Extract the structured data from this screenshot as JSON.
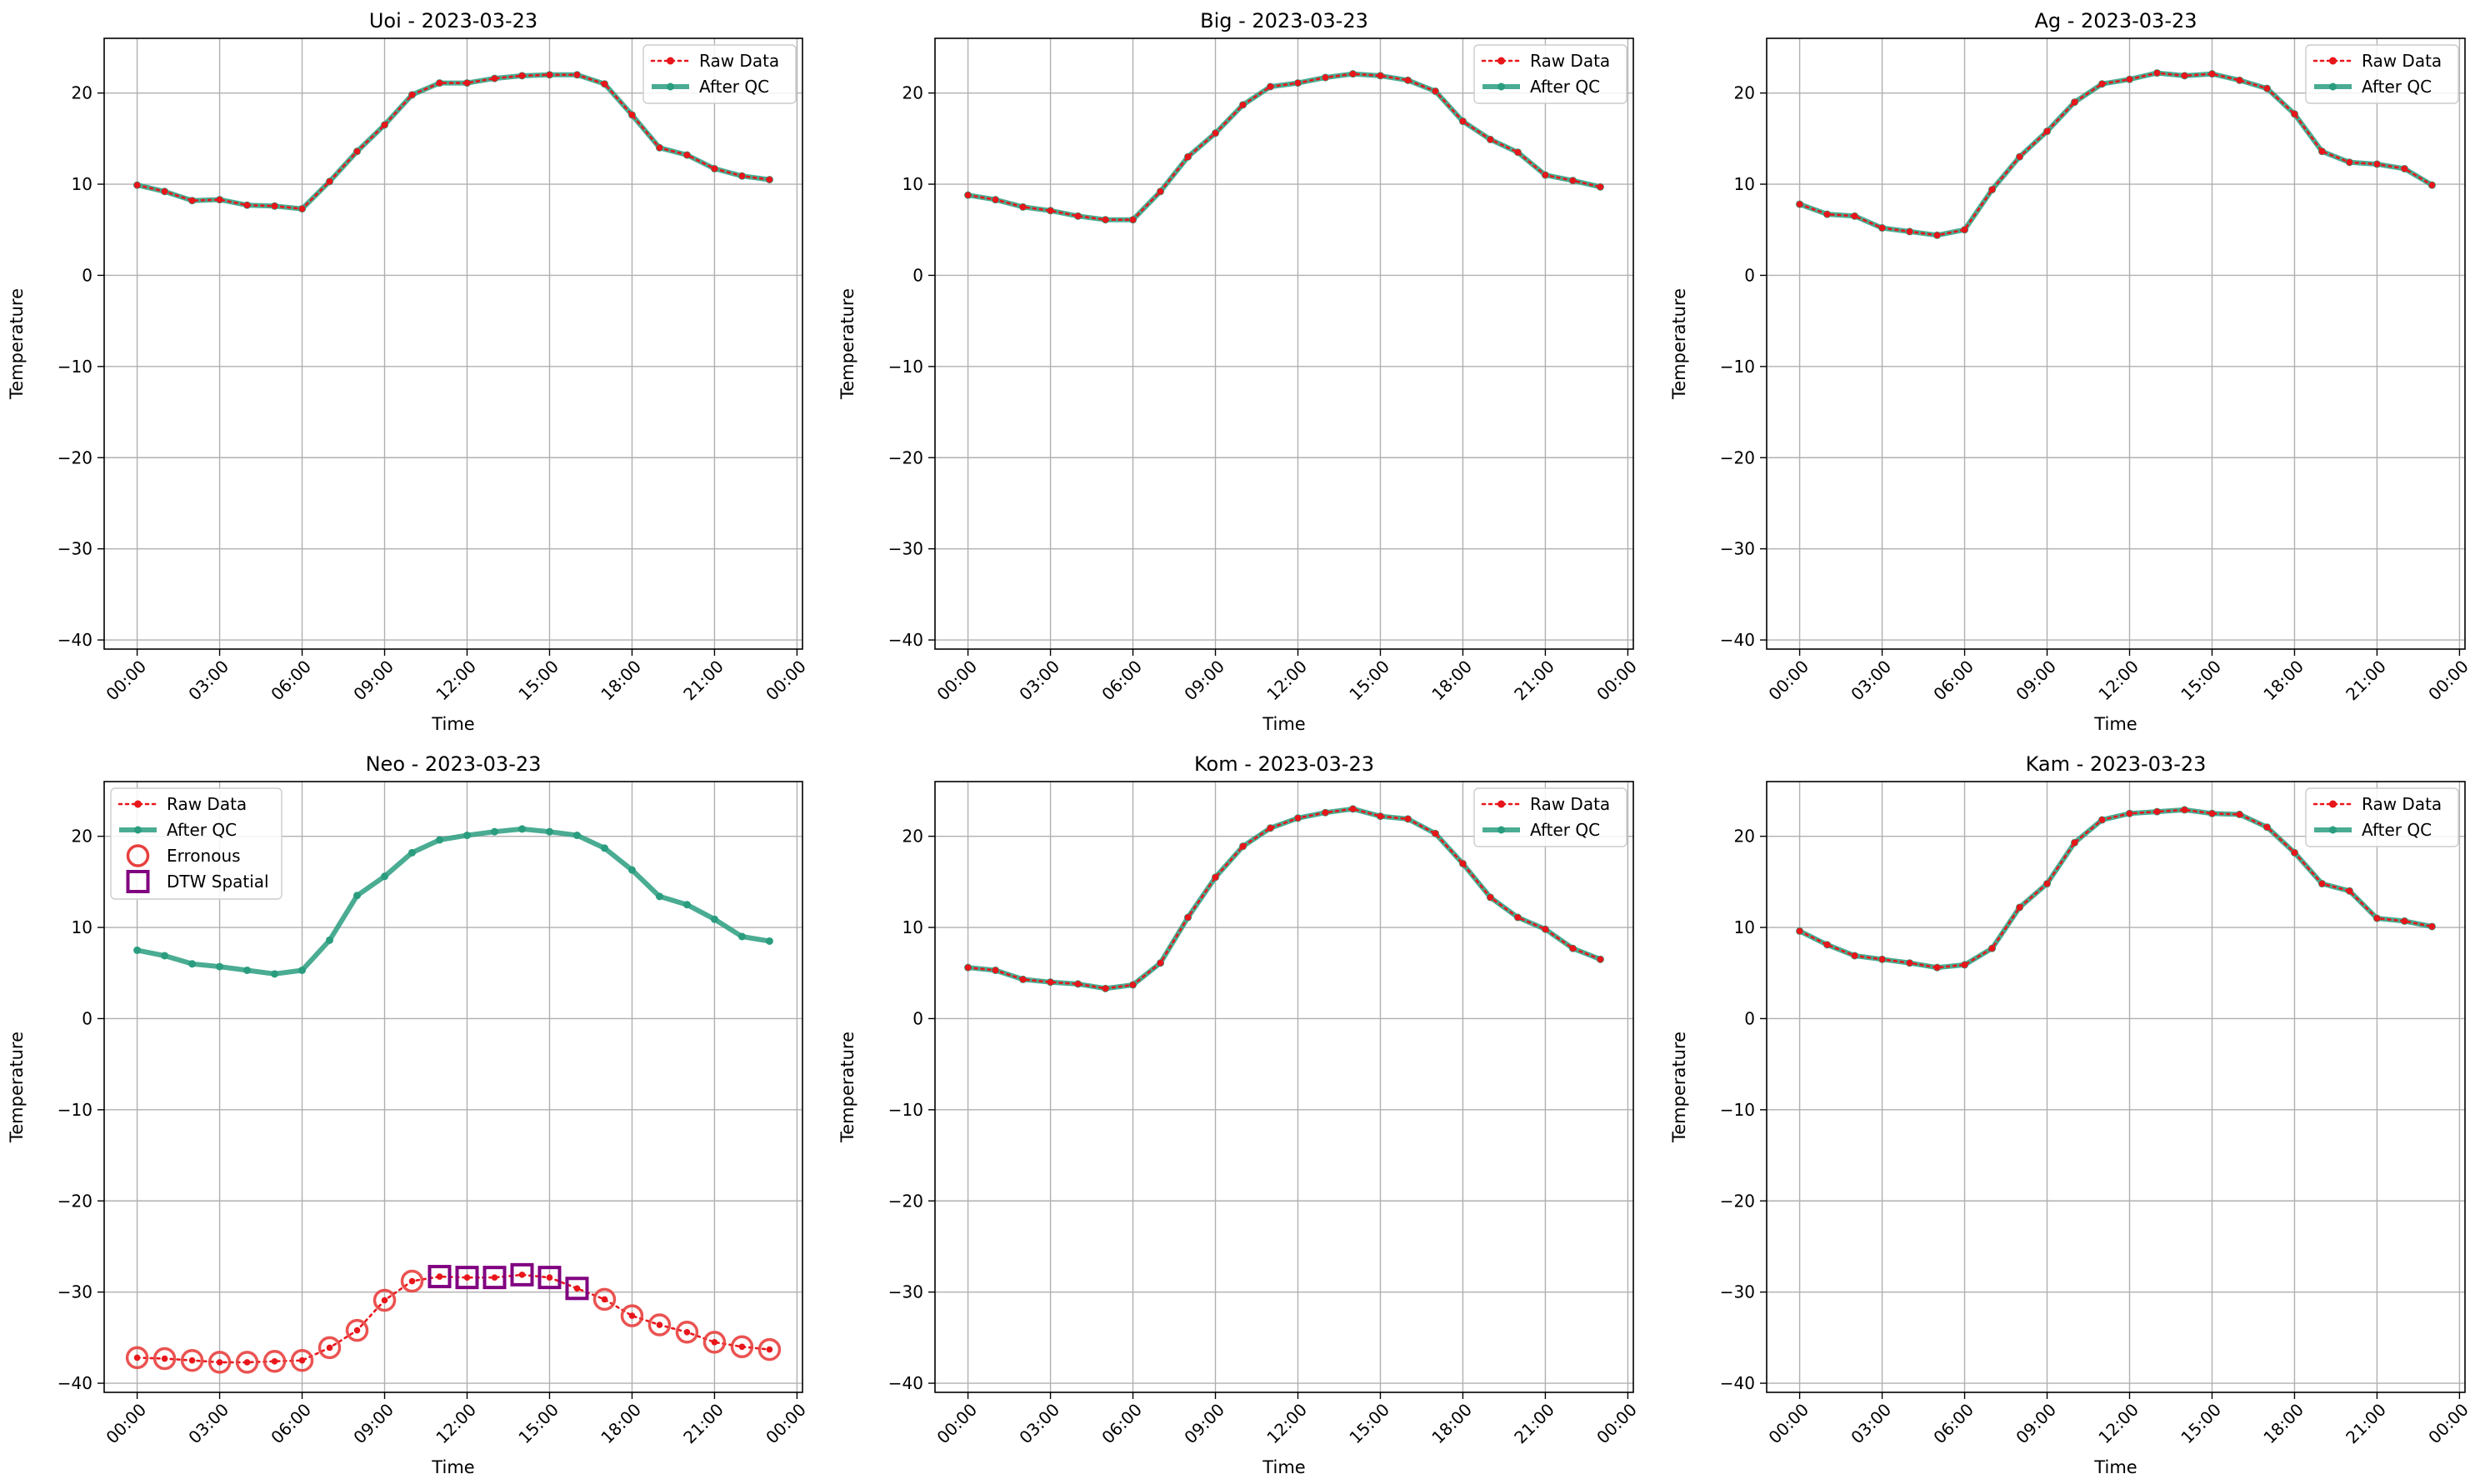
{
  "colors": {
    "raw": "#e8161b",
    "qc": "#2a9d7f",
    "erroneous": "#e8403e",
    "dtw": "#800080",
    "grid": "#b0b0b0"
  },
  "chart_data": [
    {
      "type": "line",
      "title": "Uoi - 2023-03-23",
      "xlabel": "Time",
      "ylabel": "Temperature",
      "ylim": [
        -41,
        26
      ],
      "xlim_hours": [
        -1.2,
        24.2
      ],
      "y_ticks": [
        "20",
        "10",
        "0",
        "−10",
        "−20",
        "−30",
        "−40"
      ],
      "x_ticks": [
        "00:00",
        "03:00",
        "06:00",
        "09:00",
        "12:00",
        "15:00",
        "18:00",
        "21:00",
        "00:00"
      ],
      "grid": true,
      "legend_position": "top-right",
      "legend": [
        "Raw Data",
        "After QC"
      ],
      "x": [
        "00:00",
        "01:00",
        "02:00",
        "03:00",
        "04:00",
        "05:00",
        "06:00",
        "07:00",
        "08:00",
        "09:00",
        "10:00",
        "11:00",
        "12:00",
        "13:00",
        "14:00",
        "15:00",
        "16:00",
        "17:00",
        "18:00",
        "19:00",
        "20:00",
        "21:00",
        "22:00",
        "23:00"
      ],
      "series": [
        {
          "name": "Raw Data",
          "values": [
            9.9,
            9.2,
            8.2,
            8.3,
            7.7,
            7.6,
            7.3,
            10.3,
            13.6,
            16.5,
            19.8,
            21.1,
            21.1,
            21.6,
            21.9,
            22.0,
            22.0,
            21.0,
            17.6,
            14.0,
            13.2,
            11.7,
            10.9,
            10.5
          ]
        },
        {
          "name": "After QC",
          "values": [
            9.9,
            9.2,
            8.2,
            8.3,
            7.7,
            7.6,
            7.3,
            10.3,
            13.6,
            16.5,
            19.8,
            21.1,
            21.1,
            21.6,
            21.9,
            22.0,
            22.0,
            21.0,
            17.6,
            14.0,
            13.2,
            11.7,
            10.9,
            10.5
          ]
        }
      ]
    },
    {
      "type": "line",
      "title": "Big - 2023-03-23",
      "xlabel": "Time",
      "ylabel": "Temperature",
      "ylim": [
        -41,
        26
      ],
      "xlim_hours": [
        -1.2,
        24.2
      ],
      "y_ticks": [
        "20",
        "10",
        "0",
        "−10",
        "−20",
        "−30",
        "−40"
      ],
      "x_ticks": [
        "00:00",
        "03:00",
        "06:00",
        "09:00",
        "12:00",
        "15:00",
        "18:00",
        "21:00",
        "00:00"
      ],
      "grid": true,
      "legend_position": "top-right",
      "legend": [
        "Raw Data",
        "After QC"
      ],
      "x": [
        "00:00",
        "01:00",
        "02:00",
        "03:00",
        "04:00",
        "05:00",
        "06:00",
        "07:00",
        "08:00",
        "09:00",
        "10:00",
        "11:00",
        "12:00",
        "13:00",
        "14:00",
        "15:00",
        "16:00",
        "17:00",
        "18:00",
        "19:00",
        "20:00",
        "21:00",
        "22:00",
        "23:00"
      ],
      "series": [
        {
          "name": "Raw Data",
          "values": [
            8.8,
            8.3,
            7.5,
            7.1,
            6.5,
            6.1,
            6.1,
            9.2,
            13.0,
            15.6,
            18.7,
            20.7,
            21.1,
            21.7,
            22.1,
            21.9,
            21.4,
            20.2,
            16.9,
            14.9,
            13.5,
            11.0,
            10.4,
            9.7
          ]
        },
        {
          "name": "After QC",
          "values": [
            8.8,
            8.3,
            7.5,
            7.1,
            6.5,
            6.1,
            6.1,
            9.2,
            13.0,
            15.6,
            18.7,
            20.7,
            21.1,
            21.7,
            22.1,
            21.9,
            21.4,
            20.2,
            16.9,
            14.9,
            13.5,
            11.0,
            10.4,
            9.7
          ]
        }
      ]
    },
    {
      "type": "line",
      "title": "Ag - 2023-03-23",
      "xlabel": "Time",
      "ylabel": "Temperature",
      "ylim": [
        -41,
        26
      ],
      "xlim_hours": [
        -1.2,
        24.2
      ],
      "y_ticks": [
        "20",
        "10",
        "0",
        "−10",
        "−20",
        "−30",
        "−40"
      ],
      "x_ticks": [
        "00:00",
        "03:00",
        "06:00",
        "09:00",
        "12:00",
        "15:00",
        "18:00",
        "21:00",
        "00:00"
      ],
      "grid": true,
      "legend_position": "top-right",
      "legend": [
        "Raw Data",
        "After QC"
      ],
      "x": [
        "00:00",
        "01:00",
        "02:00",
        "03:00",
        "04:00",
        "05:00",
        "06:00",
        "07:00",
        "08:00",
        "09:00",
        "10:00",
        "11:00",
        "12:00",
        "13:00",
        "14:00",
        "15:00",
        "16:00",
        "17:00",
        "18:00",
        "19:00",
        "20:00",
        "21:00",
        "22:00",
        "23:00"
      ],
      "series": [
        {
          "name": "Raw Data",
          "values": [
            7.8,
            6.7,
            6.5,
            5.2,
            4.8,
            4.4,
            5.0,
            9.4,
            13.0,
            15.8,
            19.0,
            21.0,
            21.5,
            22.2,
            21.9,
            22.1,
            21.4,
            20.5,
            17.7,
            13.6,
            12.4,
            12.2,
            11.7,
            9.9
          ]
        },
        {
          "name": "After QC",
          "values": [
            7.8,
            6.7,
            6.5,
            5.2,
            4.8,
            4.4,
            5.0,
            9.4,
            13.0,
            15.8,
            19.0,
            21.0,
            21.5,
            22.2,
            21.9,
            22.1,
            21.4,
            20.5,
            17.7,
            13.6,
            12.4,
            12.2,
            11.7,
            9.9
          ]
        }
      ]
    },
    {
      "type": "line",
      "title": "Neo - 2023-03-23",
      "xlabel": "Time",
      "ylabel": "Temperature",
      "ylim": [
        -41,
        26
      ],
      "xlim_hours": [
        -1.2,
        24.2
      ],
      "y_ticks": [
        "20",
        "10",
        "0",
        "−10",
        "−20",
        "−30",
        "−40"
      ],
      "x_ticks": [
        "00:00",
        "03:00",
        "06:00",
        "09:00",
        "12:00",
        "15:00",
        "18:00",
        "21:00",
        "00:00"
      ],
      "grid": true,
      "legend_position": "top-left",
      "legend": [
        "Raw Data",
        "After QC",
        "Erronous",
        "DTW Spatial"
      ],
      "x": [
        "00:00",
        "01:00",
        "02:00",
        "03:00",
        "04:00",
        "05:00",
        "06:00",
        "07:00",
        "08:00",
        "09:00",
        "10:00",
        "11:00",
        "12:00",
        "13:00",
        "14:00",
        "15:00",
        "16:00",
        "17:00",
        "18:00",
        "19:00",
        "20:00",
        "21:00",
        "22:00",
        "23:00"
      ],
      "series": [
        {
          "name": "Raw Data",
          "values": [
            -37.2,
            -37.3,
            -37.5,
            -37.7,
            -37.7,
            -37.6,
            -37.5,
            -36.1,
            -34.2,
            -30.9,
            -28.8,
            -28.3,
            -28.4,
            -28.4,
            -28.1,
            -28.4,
            -29.6,
            -30.8,
            -32.6,
            -33.6,
            -34.4,
            -35.5,
            -36.0,
            -36.3
          ]
        },
        {
          "name": "After QC",
          "values": [
            7.5,
            6.9,
            6.0,
            5.7,
            5.3,
            4.9,
            5.3,
            8.6,
            13.5,
            15.6,
            18.2,
            19.6,
            20.1,
            20.5,
            20.8,
            20.5,
            20.1,
            18.7,
            16.3,
            13.4,
            12.5,
            10.9,
            9.0,
            8.5
          ]
        }
      ],
      "erroneous_hours": [
        0,
        1,
        2,
        3,
        4,
        5,
        6,
        7,
        8,
        9,
        10,
        17,
        18,
        19,
        20,
        21,
        22,
        23
      ],
      "dtw_spatial_hours": [
        11,
        12,
        13,
        14,
        15,
        16
      ]
    },
    {
      "type": "line",
      "title": "Kom - 2023-03-23",
      "xlabel": "Time",
      "ylabel": "Temperature",
      "ylim": [
        -41,
        26
      ],
      "xlim_hours": [
        -1.2,
        24.2
      ],
      "y_ticks": [
        "20",
        "10",
        "0",
        "−10",
        "−20",
        "−30",
        "−40"
      ],
      "x_ticks": [
        "00:00",
        "03:00",
        "06:00",
        "09:00",
        "12:00",
        "15:00",
        "18:00",
        "21:00",
        "00:00"
      ],
      "grid": true,
      "legend_position": "top-right",
      "legend": [
        "Raw Data",
        "After QC"
      ],
      "x": [
        "00:00",
        "01:00",
        "02:00",
        "03:00",
        "04:00",
        "05:00",
        "06:00",
        "07:00",
        "08:00",
        "09:00",
        "10:00",
        "11:00",
        "12:00",
        "13:00",
        "14:00",
        "15:00",
        "16:00",
        "17:00",
        "18:00",
        "19:00",
        "20:00",
        "21:00",
        "22:00",
        "23:00"
      ],
      "series": [
        {
          "name": "Raw Data",
          "values": [
            5.6,
            5.3,
            4.3,
            4.0,
            3.8,
            3.3,
            3.7,
            6.1,
            11.1,
            15.5,
            18.9,
            20.9,
            22.0,
            22.6,
            23.0,
            22.2,
            21.9,
            20.3,
            17.0,
            13.3,
            11.1,
            9.8,
            7.7,
            6.5
          ]
        },
        {
          "name": "After QC",
          "values": [
            5.6,
            5.3,
            4.3,
            4.0,
            3.8,
            3.3,
            3.7,
            6.1,
            11.1,
            15.5,
            18.9,
            20.9,
            22.0,
            22.6,
            23.0,
            22.2,
            21.9,
            20.3,
            17.0,
            13.3,
            11.1,
            9.8,
            7.7,
            6.5
          ]
        }
      ]
    },
    {
      "type": "line",
      "title": "Kam - 2023-03-23",
      "xlabel": "Time",
      "ylabel": "Temperature",
      "ylim": [
        -41,
        26
      ],
      "xlim_hours": [
        -1.2,
        24.2
      ],
      "y_ticks": [
        "20",
        "10",
        "0",
        "−10",
        "−20",
        "−30",
        "−40"
      ],
      "x_ticks": [
        "00:00",
        "03:00",
        "06:00",
        "09:00",
        "12:00",
        "15:00",
        "18:00",
        "21:00",
        "00:00"
      ],
      "grid": true,
      "legend_position": "top-right",
      "legend": [
        "Raw Data",
        "After QC"
      ],
      "x": [
        "00:00",
        "01:00",
        "02:00",
        "03:00",
        "04:00",
        "05:00",
        "06:00",
        "07:00",
        "08:00",
        "09:00",
        "10:00",
        "11:00",
        "12:00",
        "13:00",
        "14:00",
        "15:00",
        "16:00",
        "17:00",
        "18:00",
        "19:00",
        "20:00",
        "21:00",
        "22:00",
        "23:00"
      ],
      "series": [
        {
          "name": "Raw Data",
          "values": [
            9.6,
            8.1,
            6.9,
            6.5,
            6.1,
            5.6,
            5.9,
            7.7,
            12.2,
            14.8,
            19.3,
            21.8,
            22.5,
            22.7,
            22.9,
            22.5,
            22.4,
            21.0,
            18.2,
            14.8,
            14.0,
            11.0,
            10.7,
            10.1
          ]
        },
        {
          "name": "After QC",
          "values": [
            9.6,
            8.1,
            6.9,
            6.5,
            6.1,
            5.6,
            5.9,
            7.7,
            12.2,
            14.8,
            19.3,
            21.8,
            22.5,
            22.7,
            22.9,
            22.5,
            22.4,
            21.0,
            18.2,
            14.8,
            14.0,
            11.0,
            10.7,
            10.1
          ]
        }
      ]
    }
  ]
}
